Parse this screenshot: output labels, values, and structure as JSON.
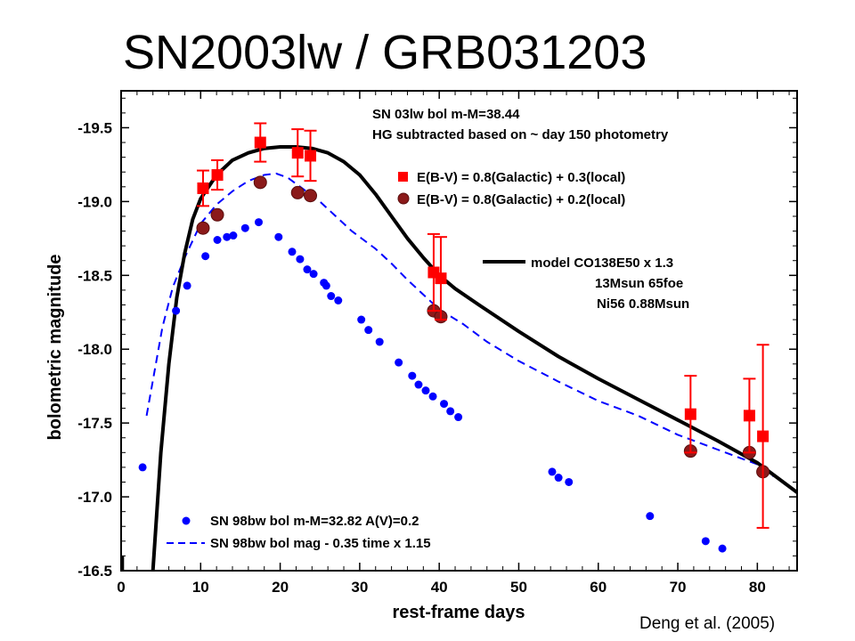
{
  "slide": {
    "title": "SN2003lw / GRB031203",
    "credit": "Deng et al. (2005)"
  },
  "chart_data": {
    "type": "scatter",
    "xlabel": "rest-frame days",
    "ylabel": "bolometric magnitude",
    "xlim": [
      0,
      85
    ],
    "ylim": [
      -19.75,
      -16.5
    ],
    "y_inverted": true,
    "x_ticks": [
      "0",
      "10",
      "20",
      "30",
      "40",
      "50",
      "60",
      "70",
      "80"
    ],
    "y_ticks": [
      "-19.5",
      "-19.0",
      "-18.5",
      "-18.0",
      "-17.5",
      "-17.0",
      "-16.5"
    ],
    "annotations": [
      "SN 03lw bol m-M=38.44",
      "HG subtracted based on ~ day 150 photometry"
    ],
    "model_note": [
      "model  CO138E50 x 1.3",
      "13Msun    65foe",
      "Ni56  0.88Msun"
    ],
    "legend_bottom": [
      "SN 98bw  bol m-M=32.82 A(V)=0.2",
      "SN 98bw  bol mag - 0.35   time x 1.15"
    ],
    "colors": {
      "red_squares": "#ff0000",
      "dark_circles": "#8b1a1a",
      "blue": "#0000ff",
      "model": "#000000"
    },
    "series": [
      {
        "name": "E(B-V) = 0.8(Galactic) + 0.3(local)",
        "marker": "square",
        "points": [
          {
            "x": 10.3,
            "y": -19.09,
            "err": 0.12
          },
          {
            "x": 12.1,
            "y": -19.18,
            "err": 0.1
          },
          {
            "x": 17.5,
            "y": -19.4,
            "err": 0.13
          },
          {
            "x": 22.2,
            "y": -19.33,
            "err": 0.16
          },
          {
            "x": 23.8,
            "y": -19.31,
            "err": 0.17
          },
          {
            "x": 39.3,
            "y": -18.52,
            "err": 0.26
          },
          {
            "x": 40.2,
            "y": -18.48,
            "err": 0.28
          },
          {
            "x": 71.6,
            "y": -17.56,
            "err": 0.26
          },
          {
            "x": 79.0,
            "y": -17.55,
            "err": 0.25
          },
          {
            "x": 80.7,
            "y": -17.41,
            "err": 0.62
          }
        ]
      },
      {
        "name": "E(B-V) = 0.8(Galactic) + 0.2(local)",
        "marker": "circle",
        "points": [
          {
            "x": 10.3,
            "y": -18.82
          },
          {
            "x": 12.1,
            "y": -18.91
          },
          {
            "x": 17.5,
            "y": -19.13
          },
          {
            "x": 22.2,
            "y": -19.06
          },
          {
            "x": 23.8,
            "y": -19.04
          },
          {
            "x": 39.3,
            "y": -18.26
          },
          {
            "x": 40.2,
            "y": -18.22
          },
          {
            "x": 71.6,
            "y": -17.31
          },
          {
            "x": 79.0,
            "y": -17.3
          },
          {
            "x": 80.7,
            "y": -17.17
          }
        ]
      },
      {
        "name": "SN 98bw  bol m-M=32.82 A(V)=0.2",
        "marker": "small-circle",
        "points": [
          {
            "x": 2.7,
            "y": -17.2
          },
          {
            "x": 6.9,
            "y": -18.26
          },
          {
            "x": 8.3,
            "y": -18.43
          },
          {
            "x": 10.6,
            "y": -18.63
          },
          {
            "x": 12.1,
            "y": -18.74
          },
          {
            "x": 13.3,
            "y": -18.76
          },
          {
            "x": 14.1,
            "y": -18.77
          },
          {
            "x": 15.6,
            "y": -18.82
          },
          {
            "x": 17.3,
            "y": -18.86
          },
          {
            "x": 19.8,
            "y": -18.76
          },
          {
            "x": 21.5,
            "y": -18.66
          },
          {
            "x": 22.5,
            "y": -18.61
          },
          {
            "x": 23.4,
            "y": -18.54
          },
          {
            "x": 24.2,
            "y": -18.51
          },
          {
            "x": 25.5,
            "y": -18.45
          },
          {
            "x": 25.8,
            "y": -18.43
          },
          {
            "x": 26.4,
            "y": -18.36
          },
          {
            "x": 27.3,
            "y": -18.33
          },
          {
            "x": 30.2,
            "y": -18.2
          },
          {
            "x": 31.1,
            "y": -18.13
          },
          {
            "x": 32.5,
            "y": -18.05
          },
          {
            "x": 34.9,
            "y": -17.91
          },
          {
            "x": 36.6,
            "y": -17.82
          },
          {
            "x": 37.4,
            "y": -17.76
          },
          {
            "x": 38.3,
            "y": -17.72
          },
          {
            "x": 39.2,
            "y": -17.68
          },
          {
            "x": 40.6,
            "y": -17.63
          },
          {
            "x": 41.4,
            "y": -17.58
          },
          {
            "x": 42.4,
            "y": -17.54
          },
          {
            "x": 54.2,
            "y": -17.17
          },
          {
            "x": 55.0,
            "y": -17.13
          },
          {
            "x": 56.3,
            "y": -17.1
          },
          {
            "x": 66.5,
            "y": -16.87
          },
          {
            "x": 73.5,
            "y": -16.7
          },
          {
            "x": 75.6,
            "y": -16.65
          }
        ]
      },
      {
        "name": "SN 98bw  bol mag - 0.35   time x 1.15",
        "style": "dashed",
        "points": [
          {
            "x": 3.2,
            "y": -17.55
          },
          {
            "x": 4.2,
            "y": -17.85
          },
          {
            "x": 5.2,
            "y": -18.15
          },
          {
            "x": 6.5,
            "y": -18.42
          },
          {
            "x": 8.0,
            "y": -18.62
          },
          {
            "x": 10.0,
            "y": -18.85
          },
          {
            "x": 12.0,
            "y": -18.98
          },
          {
            "x": 14.0,
            "y": -19.07
          },
          {
            "x": 16.0,
            "y": -19.14
          },
          {
            "x": 18.0,
            "y": -19.18
          },
          {
            "x": 19.5,
            "y": -19.19
          },
          {
            "x": 21.0,
            "y": -19.16
          },
          {
            "x": 23.0,
            "y": -19.08
          },
          {
            "x": 25.0,
            "y": -19.0
          },
          {
            "x": 27.0,
            "y": -18.9
          },
          {
            "x": 29.0,
            "y": -18.8
          },
          {
            "x": 30.5,
            "y": -18.74
          },
          {
            "x": 32.0,
            "y": -18.68
          },
          {
            "x": 34.0,
            "y": -18.58
          },
          {
            "x": 36.0,
            "y": -18.47
          },
          {
            "x": 38.0,
            "y": -18.37
          },
          {
            "x": 40.0,
            "y": -18.27
          },
          {
            "x": 43.0,
            "y": -18.17
          },
          {
            "x": 46.0,
            "y": -18.05
          },
          {
            "x": 50.0,
            "y": -17.92
          },
          {
            "x": 55.0,
            "y": -17.78
          },
          {
            "x": 60.0,
            "y": -17.65
          },
          {
            "x": 65.0,
            "y": -17.55
          },
          {
            "x": 70.0,
            "y": -17.42
          },
          {
            "x": 75.0,
            "y": -17.32
          },
          {
            "x": 80.0,
            "y": -17.22
          },
          {
            "x": 82.0,
            "y": -17.14
          }
        ]
      },
      {
        "name": "model  CO138E50 x 1.3",
        "style": "solid-thick",
        "points": [
          {
            "x": 4.0,
            "y": -16.5
          },
          {
            "x": 5.0,
            "y": -17.3
          },
          {
            "x": 6.0,
            "y": -17.9
          },
          {
            "x": 7.0,
            "y": -18.35
          },
          {
            "x": 8.0,
            "y": -18.65
          },
          {
            "x": 9.0,
            "y": -18.88
          },
          {
            "x": 10.0,
            "y": -19.02
          },
          {
            "x": 12.0,
            "y": -19.18
          },
          {
            "x": 14.0,
            "y": -19.28
          },
          {
            "x": 16.0,
            "y": -19.33
          },
          {
            "x": 18.0,
            "y": -19.36
          },
          {
            "x": 20.0,
            "y": -19.37
          },
          {
            "x": 22.0,
            "y": -19.37
          },
          {
            "x": 24.0,
            "y": -19.36
          },
          {
            "x": 26.0,
            "y": -19.33
          },
          {
            "x": 28.0,
            "y": -19.27
          },
          {
            "x": 30.0,
            "y": -19.18
          },
          {
            "x": 32.0,
            "y": -19.05
          },
          {
            "x": 34.0,
            "y": -18.9
          },
          {
            "x": 36.0,
            "y": -18.75
          },
          {
            "x": 38.0,
            "y": -18.62
          },
          {
            "x": 40.0,
            "y": -18.5
          },
          {
            "x": 42.0,
            "y": -18.41
          },
          {
            "x": 45.0,
            "y": -18.3
          },
          {
            "x": 50.0,
            "y": -18.12
          },
          {
            "x": 55.0,
            "y": -17.95
          },
          {
            "x": 60.0,
            "y": -17.8
          },
          {
            "x": 65.0,
            "y": -17.66
          },
          {
            "x": 70.0,
            "y": -17.52
          },
          {
            "x": 75.0,
            "y": -17.38
          },
          {
            "x": 80.0,
            "y": -17.23
          },
          {
            "x": 85.0,
            "y": -17.03
          }
        ]
      }
    ]
  }
}
